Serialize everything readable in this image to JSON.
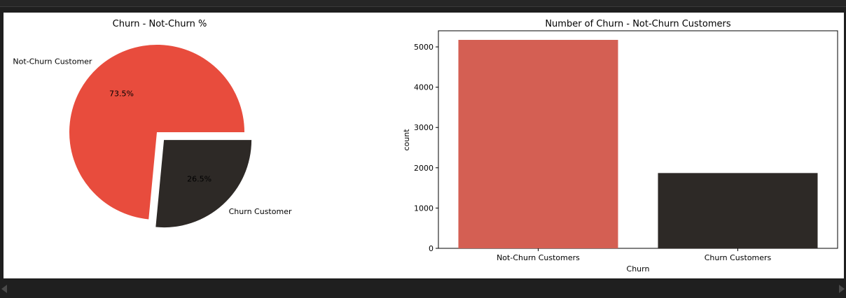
{
  "chart_data": [
    {
      "type": "pie",
      "title": "Churn - Not-Churn %",
      "slices": [
        {
          "label": "Not-Churn Customer",
          "value": 73.5,
          "pct_label": "73.5%",
          "color": "#e84c3d",
          "explode": false
        },
        {
          "label": "Churn Customer",
          "value": 26.5,
          "pct_label": "26.5%",
          "color": "#2d2926",
          "explode": true
        }
      ]
    },
    {
      "type": "bar",
      "title": "Number of Churn - Not-Churn Customers",
      "xlabel": "Churn",
      "ylabel": "count",
      "categories": [
        "Not-Churn Customers",
        "Churn Customers"
      ],
      "values": [
        5174,
        1869
      ],
      "colors": [
        "#d45f53",
        "#2d2926"
      ],
      "ylim": [
        0,
        5400
      ],
      "yticks": [
        0,
        1000,
        2000,
        3000,
        4000,
        5000
      ],
      "grid": false
    }
  ]
}
